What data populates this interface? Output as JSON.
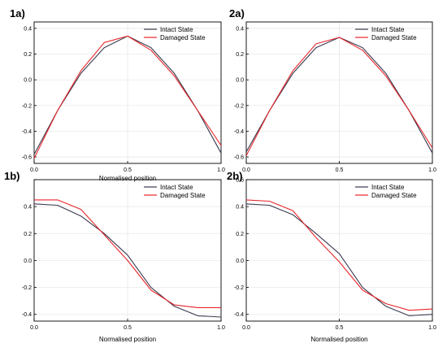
{
  "chart_data": [
    {
      "type": "line",
      "panel_label": "1a)",
      "xlabel": "Normalised position",
      "ylabel": "",
      "xlim": [
        0.0,
        1.0
      ],
      "ylim": [
        -0.65,
        0.45
      ],
      "xticks": [
        "0.0",
        "0.5",
        "1.0"
      ],
      "yticks": [
        -0.6,
        -0.4,
        -0.2,
        0.0,
        0.2,
        0.4
      ],
      "ytick_labels": [
        "-0.6",
        "-0.4",
        "-0.2",
        "0.0",
        "0.2",
        "0.4"
      ],
      "legend_position": "top-right",
      "x": [
        0,
        0.125,
        0.25,
        0.375,
        0.5,
        0.625,
        0.75,
        0.875,
        1.0
      ],
      "series": [
        {
          "name": "Intact State",
          "color": "#3a3a50",
          "values": [
            -0.58,
            -0.24,
            0.05,
            0.25,
            0.34,
            0.25,
            0.05,
            -0.24,
            -0.57
          ]
        },
        {
          "name": "Damaged State",
          "color": "#e8262a",
          "values": [
            -0.61,
            -0.24,
            0.07,
            0.29,
            0.34,
            0.23,
            0.03,
            -0.24,
            -0.51
          ]
        }
      ]
    },
    {
      "type": "line",
      "panel_label": "2a)",
      "xlabel": "",
      "ylabel": "",
      "xlim": [
        0.0,
        1.0
      ],
      "ylim": [
        -0.65,
        0.45
      ],
      "xticks": [
        "0.0",
        "0.5",
        "1.0"
      ],
      "yticks": [
        -0.6,
        -0.4,
        -0.2,
        0.0,
        0.2,
        0.4
      ],
      "ytick_labels": [
        "-0.6",
        "-0.4",
        "-0.2",
        "0.0",
        "0.2",
        "0.4"
      ],
      "legend_position": "top-right",
      "x": [
        0,
        0.125,
        0.25,
        0.375,
        0.5,
        0.625,
        0.75,
        0.875,
        1.0
      ],
      "series": [
        {
          "name": "Intact State",
          "color": "#3a3a50",
          "values": [
            -0.56,
            -0.24,
            0.05,
            0.25,
            0.33,
            0.25,
            0.05,
            -0.24,
            -0.57
          ]
        },
        {
          "name": "Damaged State",
          "color": "#e8262a",
          "values": [
            -0.59,
            -0.24,
            0.07,
            0.28,
            0.33,
            0.23,
            0.03,
            -0.24,
            -0.53
          ]
        }
      ]
    },
    {
      "type": "line",
      "panel_label": "1b)",
      "xlabel": "Normalised position",
      "ylabel": "",
      "xlim": [
        0.0,
        1.0
      ],
      "ylim": [
        -0.45,
        0.6
      ],
      "xticks": [
        "0.0",
        "0.5",
        "1.0"
      ],
      "yticks": [
        -0.4,
        -0.2,
        0.0,
        0.2,
        0.4,
        0.6
      ],
      "ytick_labels": [
        "-0.4",
        "-0.2",
        "0.0",
        "0.2",
        "0.4",
        ""
      ],
      "legend_position": "top-right",
      "x": [
        0,
        0.125,
        0.25,
        0.375,
        0.5,
        0.625,
        0.75,
        0.875,
        1.0
      ],
      "series": [
        {
          "name": "Intact State",
          "color": "#3a3a50",
          "values": [
            0.42,
            0.41,
            0.33,
            0.2,
            0.04,
            -0.2,
            -0.34,
            -0.41,
            -0.42
          ]
        },
        {
          "name": "Damaged State",
          "color": "#e8262a",
          "values": [
            0.45,
            0.45,
            0.38,
            0.19,
            0.0,
            -0.22,
            -0.33,
            -0.35,
            -0.35
          ]
        }
      ]
    },
    {
      "type": "line",
      "panel_label": "2b)",
      "xlabel": "Normalised position",
      "ylabel": "",
      "xlim": [
        0.0,
        1.0
      ],
      "ylim": [
        -0.45,
        0.6
      ],
      "xticks": [
        "0.0",
        "0.5",
        "1.0"
      ],
      "yticks": [
        -0.4,
        -0.2,
        0.0,
        0.2,
        0.4,
        0.6
      ],
      "ytick_labels": [
        "-0.4",
        "-0.2",
        "0.0",
        "0.2",
        "0.4",
        "0.6"
      ],
      "legend_position": "top-right",
      "x": [
        0,
        0.125,
        0.25,
        0.375,
        0.5,
        0.625,
        0.75,
        0.875,
        1.0
      ],
      "series": [
        {
          "name": "Intact State",
          "color": "#3a3a50",
          "values": [
            0.42,
            0.41,
            0.34,
            0.2,
            0.05,
            -0.2,
            -0.34,
            -0.41,
            -0.4
          ]
        },
        {
          "name": "Damaged State",
          "color": "#e8262a",
          "values": [
            0.45,
            0.44,
            0.37,
            0.17,
            -0.01,
            -0.22,
            -0.32,
            -0.37,
            -0.36
          ]
        }
      ]
    }
  ]
}
